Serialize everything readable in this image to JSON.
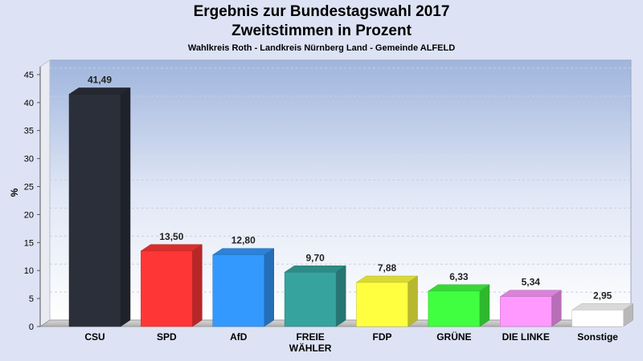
{
  "chart_data": {
    "type": "bar",
    "title": "Ergebnis zur Bundestagswahl 2017",
    "subtitle": "Zweitstimmen in Prozent",
    "caption": "Wahlkreis Roth - Landkreis Nürnberg Land - Gemeinde ALFELD",
    "ylabel": "%",
    "xlabel": "",
    "ylim": [
      0,
      47
    ],
    "yticks": [
      0,
      5,
      10,
      15,
      20,
      25,
      30,
      35,
      40,
      45
    ],
    "grid": true,
    "categories": [
      "CSU",
      "SPD",
      "AfD",
      "FREIE WÄHLER",
      "FDP",
      "GRÜNE",
      "DIE LINKE",
      "Sonstige"
    ],
    "category_lines": [
      [
        "CSU"
      ],
      [
        "SPD"
      ],
      [
        "AfD"
      ],
      [
        "FREIE",
        "WÄHLER"
      ],
      [
        "FDP"
      ],
      [
        "GRÜNE"
      ],
      [
        "DIE LINKE"
      ],
      [
        "Sonstige"
      ]
    ],
    "values": [
      41.49,
      13.5,
      12.8,
      9.7,
      7.88,
      6.33,
      5.34,
      2.95
    ],
    "value_labels": [
      "41,49",
      "13,50",
      "12,80",
      "9,70",
      "7,88",
      "6,33",
      "5,34",
      "2,95"
    ],
    "colors": [
      "#2b2f3a",
      "#ff3636",
      "#3399ff",
      "#36a39e",
      "#ffff40",
      "#40ff40",
      "#ff99ff",
      "#ffffff"
    ]
  }
}
